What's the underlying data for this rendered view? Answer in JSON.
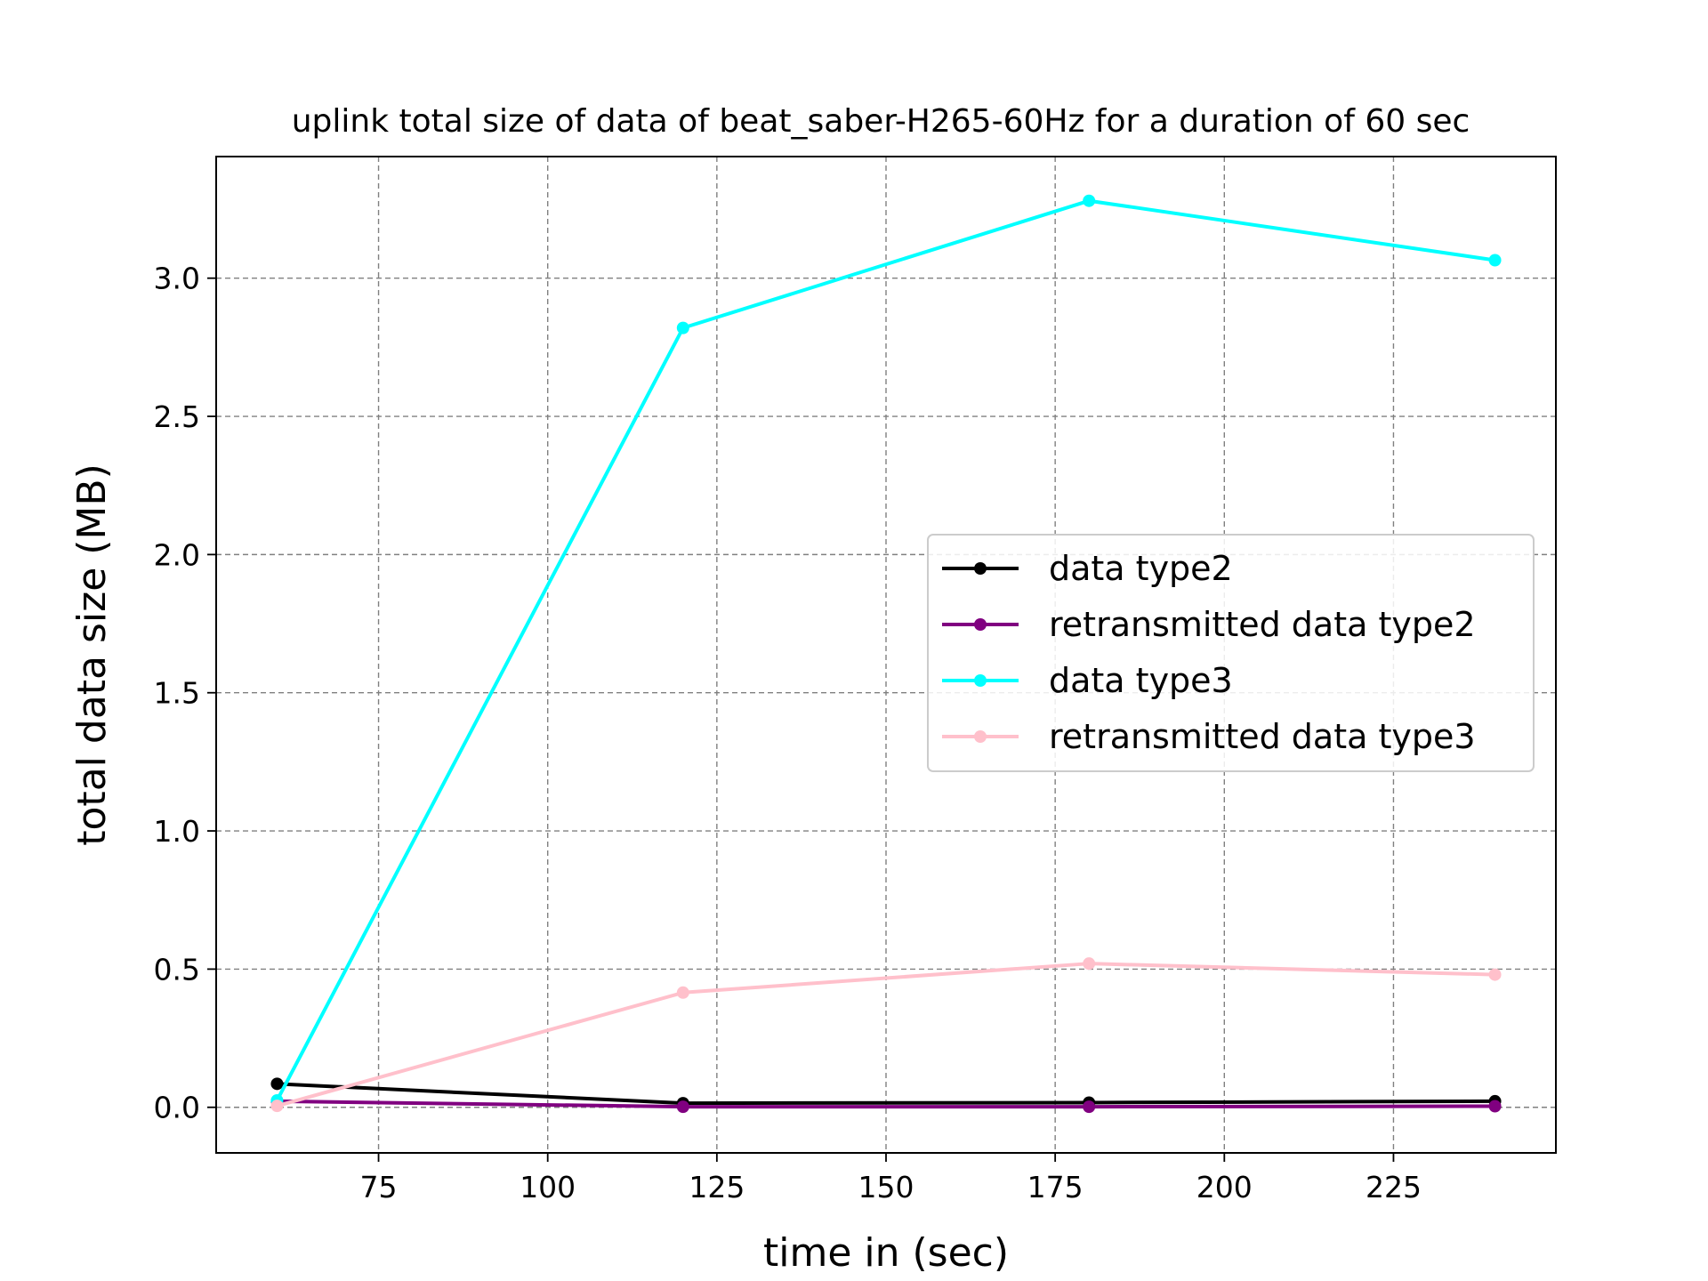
{
  "chart_data": {
    "type": "line",
    "title": "uplink total size of data of beat_saber-H265-60Hz for a duration of 60 sec",
    "xlabel": "time in (sec)",
    "ylabel": "total data size (MB)",
    "xlim": [
      51,
      249
    ],
    "ylim": [
      -0.165,
      3.44
    ],
    "xticks": [
      75,
      100,
      125,
      150,
      175,
      200,
      225
    ],
    "xtick_labels": [
      "75",
      "100",
      "125",
      "150",
      "175",
      "200",
      "225"
    ],
    "yticks": [
      0.0,
      0.5,
      1.0,
      1.5,
      2.0,
      2.5,
      3.0
    ],
    "ytick_labels": [
      "0.0",
      "0.5",
      "1.0",
      "1.5",
      "2.0",
      "2.5",
      "3.0"
    ],
    "grid": true,
    "legend_position": "center-right",
    "x": [
      60,
      120,
      180,
      240
    ],
    "series": [
      {
        "name": "data type2",
        "color": "#000000",
        "values": [
          0.085,
          0.015,
          0.017,
          0.022
        ]
      },
      {
        "name": "retransmitted data type2",
        "color": "#800080",
        "values": [
          0.022,
          0.002,
          0.002,
          0.004
        ]
      },
      {
        "name": "data type3",
        "color": "#00ffff",
        "values": [
          0.025,
          2.82,
          3.28,
          3.065
        ]
      },
      {
        "name": "retransmitted data type3",
        "color": "#ffc0cb",
        "values": [
          0.005,
          0.415,
          0.52,
          0.48
        ]
      }
    ]
  }
}
